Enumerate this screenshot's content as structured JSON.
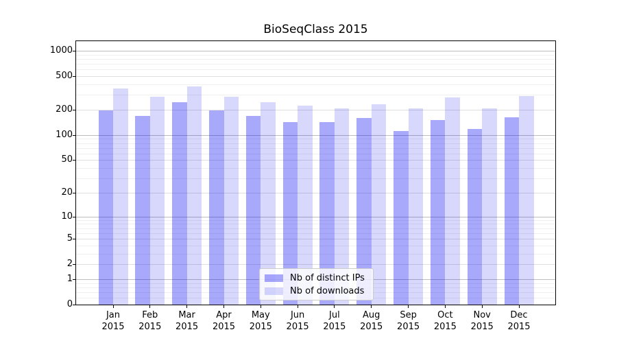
{
  "chart_data": {
    "type": "bar",
    "title": "BioSeqClass 2015",
    "months": [
      "Jan",
      "Feb",
      "Mar",
      "Apr",
      "May",
      "Jun",
      "Jul",
      "Aug",
      "Sep",
      "Oct",
      "Nov",
      "Dec"
    ],
    "year": "2015",
    "series": [
      {
        "name": "Nb of distinct IPs",
        "color": "rgba(10,10,245,0.35)",
        "values": [
          197,
          168,
          248,
          198,
          168,
          144,
          143,
          160,
          112,
          152,
          118,
          162
        ]
      },
      {
        "name": "Nb of downloads",
        "color": "rgba(10,10,245,0.16)",
        "values": [
          355,
          285,
          375,
          288,
          246,
          222,
          208,
          232,
          208,
          280,
          206,
          293
        ]
      }
    ],
    "yscale": "log1p",
    "yticks": [
      0,
      1,
      2,
      5,
      10,
      20,
      50,
      100,
      200,
      500,
      1000
    ],
    "yminorticks": [
      0.2,
      0.4,
      0.6,
      0.8,
      3,
      4,
      6,
      7,
      8,
      9,
      30,
      40,
      60,
      70,
      80,
      90,
      300,
      400,
      600,
      700,
      800,
      900
    ],
    "ylim": [
      0,
      1000
    ],
    "grid": "both",
    "legend_position": "lower center"
  },
  "colors": {
    "grid_decade": "#bdbdbd",
    "grid_labeled": "#dedede",
    "grid_minor": "#efefef",
    "spine": "#000000",
    "background": "#ffffff"
  }
}
